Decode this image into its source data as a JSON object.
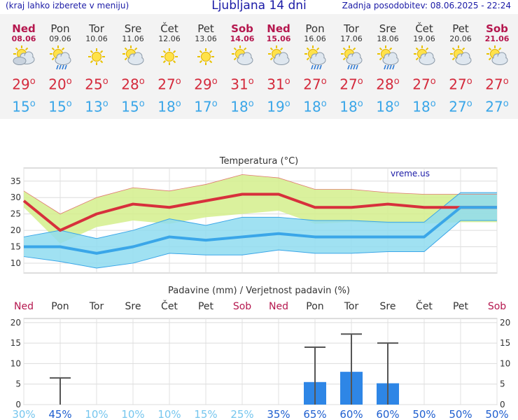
{
  "header": {
    "menu_hint": "(kraj lahko izberete v meniju)",
    "title": "Ljubljana 14 dni",
    "updated": "Zadnja posodobitev: 08.06.2025 - 22:24"
  },
  "days": [
    {
      "name": "Ned",
      "date": "08.06",
      "holiday": true,
      "icon": "partly-cloudy-icon",
      "max": "29",
      "min": "15"
    },
    {
      "name": "Pon",
      "date": "09.06",
      "holiday": false,
      "icon": "sun-cloud-rain-icon",
      "max": "20",
      "min": "15"
    },
    {
      "name": "Tor",
      "date": "10.06",
      "holiday": false,
      "icon": "sun-icon",
      "max": "25",
      "min": "13"
    },
    {
      "name": "Sre",
      "date": "11.06",
      "holiday": false,
      "icon": "sun-cloud-icon",
      "max": "28",
      "min": "15"
    },
    {
      "name": "Čet",
      "date": "12.06",
      "holiday": false,
      "icon": "sun-icon",
      "max": "27",
      "min": "18"
    },
    {
      "name": "Pet",
      "date": "13.06",
      "holiday": false,
      "icon": "sun-icon",
      "max": "29",
      "min": "17"
    },
    {
      "name": "Sob",
      "date": "14.06",
      "holiday": true,
      "icon": "sun-cloud-icon",
      "max": "31",
      "min": "18"
    },
    {
      "name": "Ned",
      "date": "15.06",
      "holiday": true,
      "icon": "sun-cloud-icon",
      "max": "31",
      "min": "19"
    },
    {
      "name": "Pon",
      "date": "16.06",
      "holiday": false,
      "icon": "sun-cloud-rain-icon",
      "max": "27",
      "min": "18"
    },
    {
      "name": "Tor",
      "date": "17.06",
      "holiday": false,
      "icon": "sun-cloud-rain-icon",
      "max": "27",
      "min": "18"
    },
    {
      "name": "Sre",
      "date": "18.06",
      "holiday": false,
      "icon": "sun-cloud-rain-icon",
      "max": "28",
      "min": "18"
    },
    {
      "name": "Čet",
      "date": "19.06",
      "holiday": false,
      "icon": "sun-cloud-icon",
      "max": "27",
      "min": "18"
    },
    {
      "name": "Pet",
      "date": "20.06",
      "holiday": false,
      "icon": "sun-cloud-icon",
      "max": "27",
      "min": "27"
    },
    {
      "name": "Sob",
      "date": "21.06",
      "holiday": true,
      "icon": "sun-cloud-icon",
      "max": "27",
      "min": "27"
    }
  ],
  "chart_data": [
    {
      "type": "line",
      "title": "Temperatura (°C)",
      "watermark": "vreme.us",
      "categories": [
        "Ned",
        "Pon",
        "Tor",
        "Sre",
        "Čet",
        "Pet",
        "Sob",
        "Ned",
        "Pon",
        "Tor",
        "Sre",
        "Čet",
        "Pet",
        "Sob"
      ],
      "yticks": [
        10,
        15,
        20,
        25,
        30,
        35
      ],
      "ylim": [
        7,
        39
      ],
      "grid": true,
      "max_series": [
        29,
        20,
        25,
        28,
        27,
        29,
        31,
        31,
        27,
        27,
        28,
        27,
        27,
        27
      ],
      "max_band_upper": [
        32,
        25,
        30,
        33,
        32,
        34,
        37,
        36,
        32.5,
        32.5,
        31.5,
        31,
        31,
        31
      ],
      "max_band_lower": [
        27,
        16,
        21,
        23,
        22,
        24,
        25,
        26,
        22,
        22.5,
        22,
        22,
        22.5,
        22.5
      ],
      "min_series": [
        15,
        15,
        13,
        15,
        18,
        17,
        18,
        19,
        18,
        18,
        18,
        18,
        27,
        27
      ],
      "min_band_upper": [
        18,
        20,
        17.5,
        20,
        23.5,
        21.5,
        24,
        24,
        23,
        23,
        22.5,
        22.5,
        31.5,
        31.5
      ],
      "min_band_lower": [
        12,
        10.5,
        8.5,
        10,
        13,
        12.5,
        12.5,
        14,
        13,
        13,
        13.5,
        13.5,
        23,
        23
      ],
      "colors": {
        "max": "#d7303c",
        "min": "#3aa6e8",
        "max_band": "#d4ee8c",
        "min_band": "#8fdcf0",
        "overlap": "#7fd27e"
      }
    },
    {
      "type": "bar",
      "title": "Padavine (mm) / Verjetnost padavin (%)",
      "categories": [
        "Ned",
        "Pon",
        "Tor",
        "Sre",
        "Čet",
        "Pet",
        "Sob",
        "Ned",
        "Pon",
        "Tor",
        "Sre",
        "Čet",
        "Pet",
        "Sob"
      ],
      "holidays": [
        true,
        false,
        false,
        false,
        false,
        false,
        true,
        true,
        false,
        false,
        false,
        false,
        false,
        true
      ],
      "yticks": [
        0,
        5,
        10,
        15,
        20
      ],
      "ylim": [
        0,
        21
      ],
      "values": [
        0,
        0,
        0,
        0,
        0,
        0,
        0,
        0,
        5.5,
        8,
        5.2,
        0,
        0,
        0
      ],
      "error_max": [
        0,
        6.5,
        0,
        0,
        0,
        0,
        0,
        0,
        14,
        17.2,
        15,
        0,
        0,
        0
      ],
      "probability": [
        "30%",
        "45%",
        "10%",
        "10%",
        "10%",
        "15%",
        "25%",
        "35%",
        "65%",
        "60%",
        "60%",
        "50%",
        "50%",
        "50%"
      ],
      "probability_high": [
        false,
        true,
        false,
        false,
        false,
        false,
        false,
        true,
        true,
        true,
        true,
        true,
        true,
        true
      ],
      "colors": {
        "bar": "#2e86e6",
        "prob_low": "#76c6ee",
        "prob_high": "#1f5fcf",
        "error": "#555555"
      }
    }
  ]
}
